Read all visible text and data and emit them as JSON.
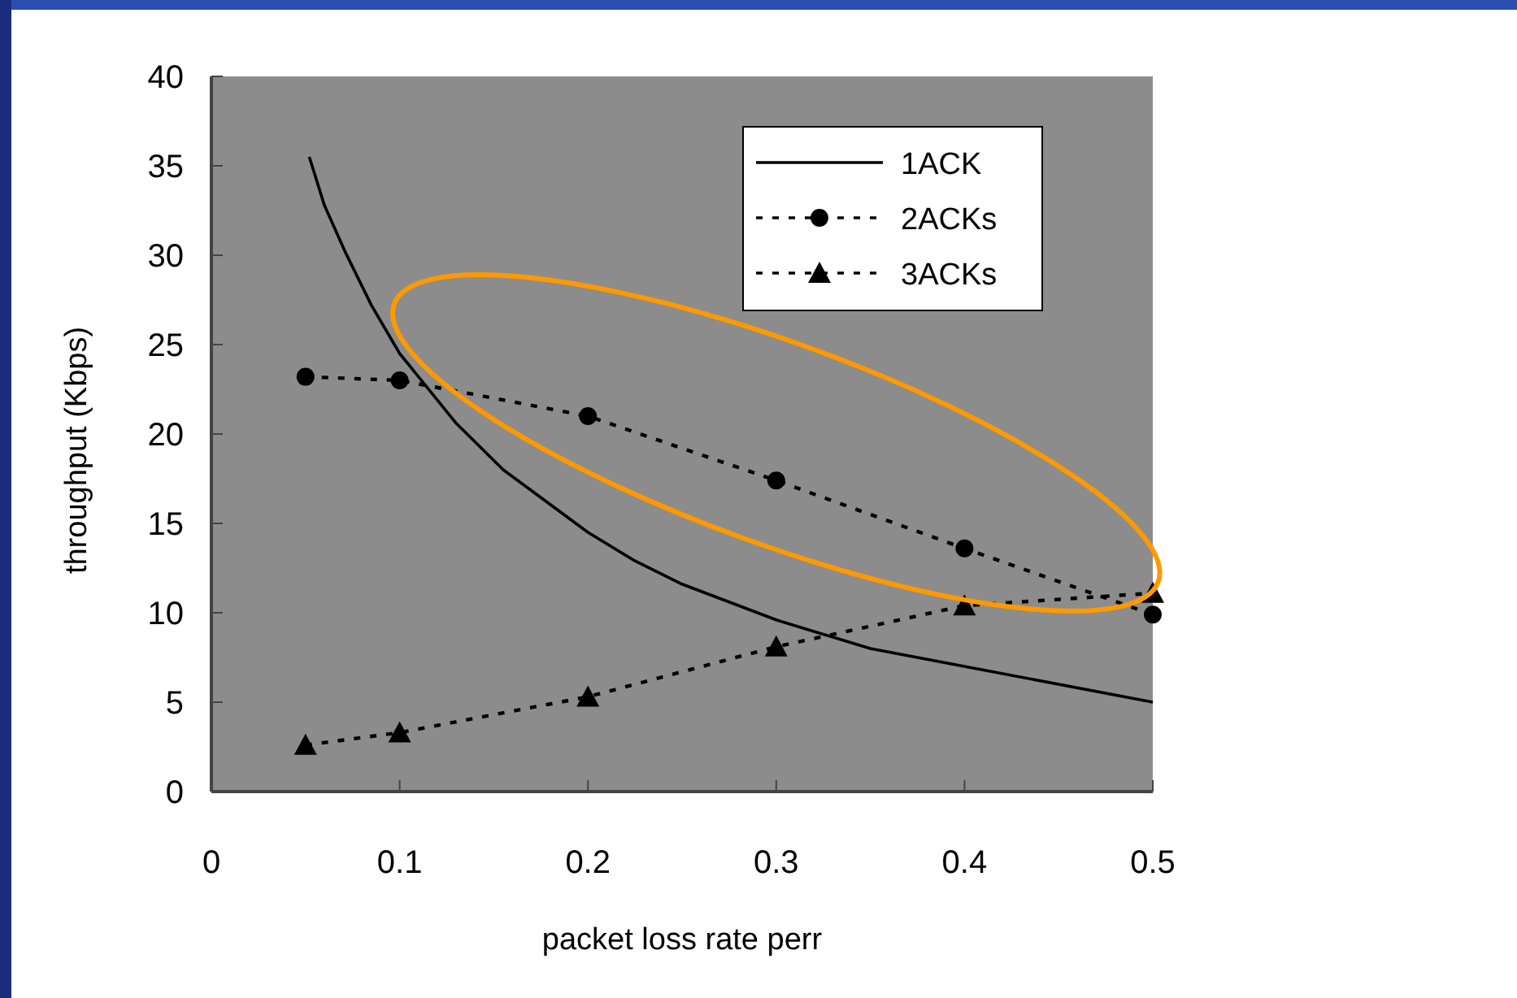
{
  "chart_data": {
    "type": "line",
    "xlabel": "packet loss rate perr",
    "ylabel": "throughput (Kbps)",
    "xlim": [
      0,
      0.5
    ],
    "xticks": [
      0,
      0.1,
      0.2,
      0.3,
      0.4,
      0.5
    ],
    "ylim": [
      0,
      40
    ],
    "yticks": [
      0,
      5,
      10,
      15,
      20,
      25,
      30,
      35,
      40
    ],
    "grid": false,
    "legend": "top right",
    "series": [
      {
        "name": "1ACK",
        "color": "#000000",
        "marker": "none",
        "line_style": "solid",
        "x": [
          0.052,
          0.06,
          0.071,
          0.085,
          0.1,
          0.13,
          0.155,
          0.2,
          0.225,
          0.25,
          0.3,
          0.35,
          0.4,
          0.5
        ],
        "values": [
          35.5,
          32.8,
          30.2,
          27.2,
          24.5,
          20.6,
          18.0,
          14.5,
          12.9,
          11.6,
          9.6,
          8.0,
          7.0,
          5.0
        ]
      },
      {
        "name": "2ACKs",
        "color": "#000000",
        "marker": "circle",
        "line_style": "dotted",
        "x": [
          0.05,
          0.1,
          0.2,
          0.3,
          0.4,
          0.5
        ],
        "values": [
          23.2,
          23.0,
          21.0,
          17.4,
          13.6,
          9.9
        ]
      },
      {
        "name": "3ACKs",
        "color": "#000000",
        "marker": "triangle",
        "line_style": "dotted",
        "x": [
          0.05,
          0.1,
          0.2,
          0.3,
          0.4,
          0.5
        ],
        "values": [
          2.6,
          3.3,
          5.3,
          8.1,
          10.4,
          11.1
        ]
      }
    ]
  }
}
